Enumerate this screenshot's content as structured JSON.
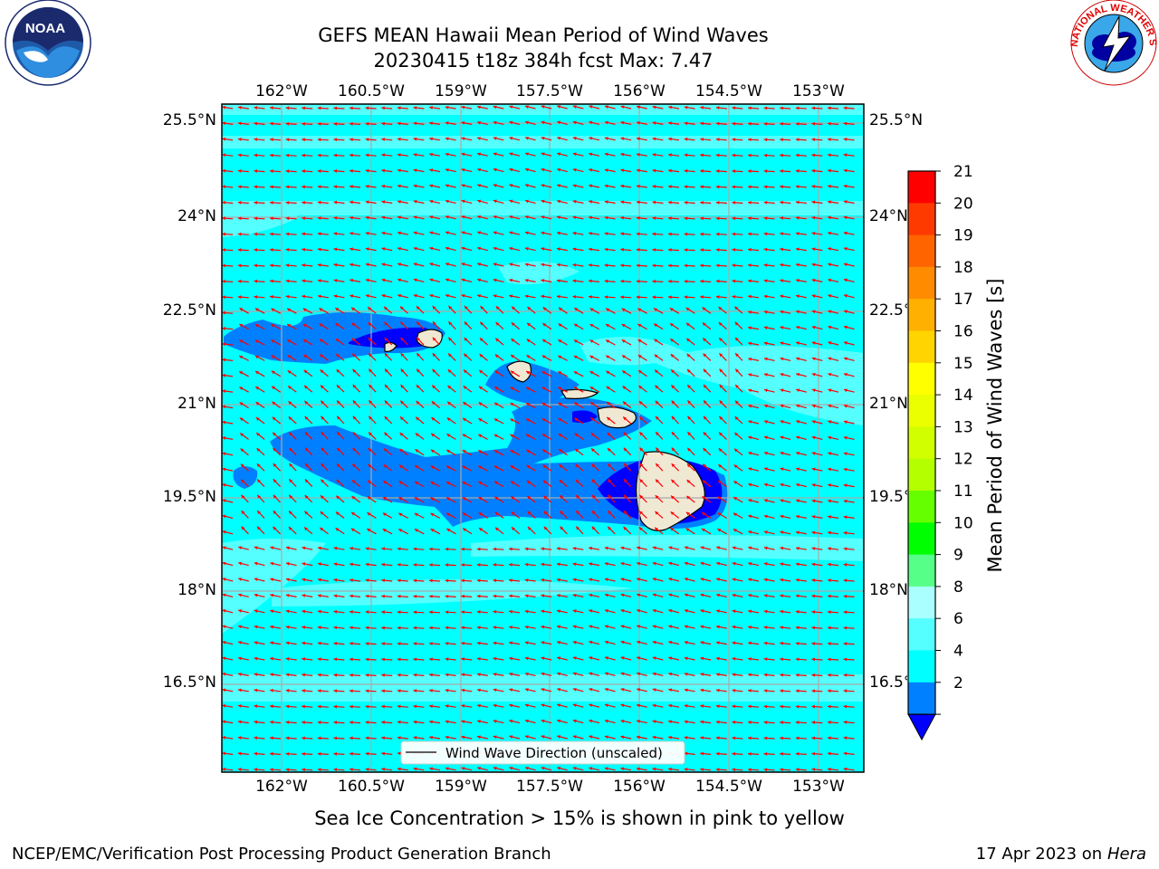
{
  "header": {
    "title_line1": "GEFS MEAN Hawaii Mean Period of Wind Waves",
    "title_line2": "20230415 t18z 384h fcst   Max: 7.47"
  },
  "logos": {
    "left": {
      "icon": "noaa-logo",
      "text": "NOAA"
    },
    "right": {
      "icon": "nws-logo",
      "text": "NATIONAL WEATHER SERVICE"
    }
  },
  "map": {
    "lon_labels": [
      "162°W",
      "160.5°W",
      "159°W",
      "157.5°W",
      "156°W",
      "154.5°W",
      "153°W"
    ],
    "lat_labels": [
      "25.5°N",
      "24°N",
      "22.5°N",
      "21°N",
      "19.5°N",
      "18°N",
      "16.5°N"
    ],
    "legend_label": "Wind Wave Direction (unscaled)",
    "colors": {
      "ocean_main": "#00ffff",
      "ocean_light": "#55ffff",
      "shelf": "#0080ff",
      "shelf_deep": "#0000ff",
      "land": "#efe9d4",
      "arrow": "#ff0000",
      "grid": "#a9a9a9"
    }
  },
  "colorbar": {
    "title": "Mean Period of Wind Waves [s]",
    "ticks": [
      "21",
      "20",
      "19",
      "18",
      "17",
      "16",
      "15",
      "14",
      "13",
      "12",
      "11",
      "10",
      "9",
      "8",
      "6",
      "4",
      "2"
    ],
    "colors": [
      "#ff0000",
      "#ff3a00",
      "#ff6400",
      "#ff8c00",
      "#ffb000",
      "#ffd400",
      "#ffff00",
      "#ebff00",
      "#d2ff00",
      "#b4ff00",
      "#66ff00",
      "#00ff00",
      "#55ff88",
      "#aaffff",
      "#55ffff",
      "#00ffff",
      "#0080ff"
    ],
    "underflow_color": "#0000ff"
  },
  "notes": {
    "sea_ice": "Sea Ice Concentration > 15% is shown in pink to yellow",
    "footer_left": "NCEP/EMC/Verification Post Processing Product Generation Branch",
    "footer_date": "17 Apr 2023 on",
    "footer_host": "Hera"
  }
}
